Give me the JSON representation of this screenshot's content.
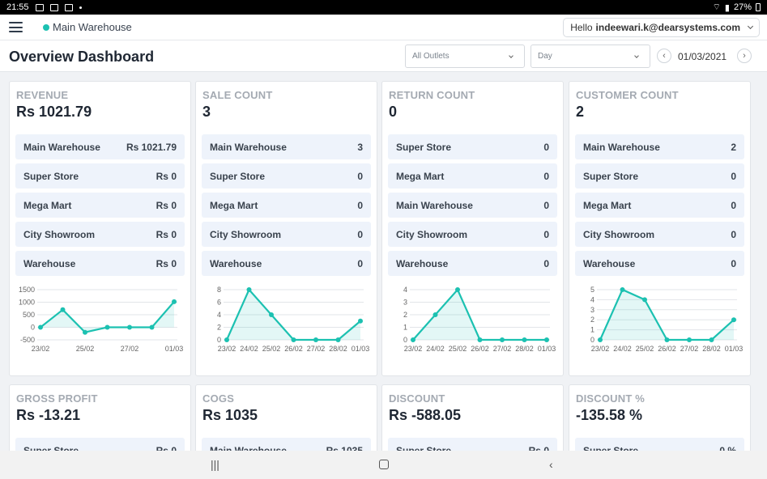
{
  "status_bar": {
    "time": "21:55",
    "battery": "27%"
  },
  "header": {
    "location": "Main Warehouse",
    "greeting": "Hello",
    "user": "indeewari.k@dearsystems.com"
  },
  "toolbar": {
    "title": "Overview Dashboard",
    "outlet_select": "All Outlets",
    "period_select": "Day",
    "date": "01/03/2021",
    "prev": "‹",
    "next": "›"
  },
  "colors": {
    "accent": "#1cc1b1",
    "row_bg": "#eef3fb"
  },
  "cards": [
    {
      "title": "REVENUE",
      "value": "Rs 1021.79",
      "rows": [
        {
          "label": "Main Warehouse",
          "value": "Rs 1021.79"
        },
        {
          "label": "Super Store",
          "value": "Rs 0"
        },
        {
          "label": "Mega Mart",
          "value": "Rs 0"
        },
        {
          "label": "City Showroom",
          "value": "Rs 0"
        },
        {
          "label": "Warehouse",
          "value": "Rs 0"
        }
      ]
    },
    {
      "title": "SALE COUNT",
      "value": "3",
      "rows": [
        {
          "label": "Main Warehouse",
          "value": "3"
        },
        {
          "label": "Super Store",
          "value": "0"
        },
        {
          "label": "Mega Mart",
          "value": "0"
        },
        {
          "label": "City Showroom",
          "value": "0"
        },
        {
          "label": "Warehouse",
          "value": "0"
        }
      ]
    },
    {
      "title": "RETURN COUNT",
      "value": "0",
      "rows": [
        {
          "label": "Super Store",
          "value": "0"
        },
        {
          "label": "Mega Mart",
          "value": "0"
        },
        {
          "label": "Main Warehouse",
          "value": "0"
        },
        {
          "label": "City Showroom",
          "value": "0"
        },
        {
          "label": "Warehouse",
          "value": "0"
        }
      ]
    },
    {
      "title": "CUSTOMER COUNT",
      "value": "2",
      "rows": [
        {
          "label": "Main Warehouse",
          "value": "2"
        },
        {
          "label": "Super Store",
          "value": "0"
        },
        {
          "label": "Mega Mart",
          "value": "0"
        },
        {
          "label": "City Showroom",
          "value": "0"
        },
        {
          "label": "Warehouse",
          "value": "0"
        }
      ]
    },
    {
      "title": "GROSS PROFIT",
      "value": "Rs -13.21",
      "rows": [
        {
          "label": "Super Store",
          "value": "Rs 0"
        }
      ]
    },
    {
      "title": "COGS",
      "value": "Rs 1035",
      "rows": [
        {
          "label": "Main Warehouse",
          "value": "Rs 1035"
        }
      ]
    },
    {
      "title": "DISCOUNT",
      "value": "Rs -588.05",
      "rows": [
        {
          "label": "Super Store",
          "value": "Rs 0"
        }
      ]
    },
    {
      "title": "DISCOUNT %",
      "value": "-135.58 %",
      "rows": [
        {
          "label": "Super Store",
          "value": "0 %"
        }
      ]
    }
  ],
  "chart_data": [
    {
      "type": "area",
      "x": [
        "23/02",
        "24/02",
        "25/02",
        "26/02",
        "27/02",
        "28/02",
        "01/03"
      ],
      "xticks": [
        "23/02",
        "25/02",
        "27/02",
        "01/03"
      ],
      "yticks": [
        "1500",
        "1000",
        "500",
        "0",
        "-500"
      ],
      "values": [
        0,
        700,
        -200,
        0,
        0,
        0,
        1021.79
      ],
      "ylim": [
        -500,
        1500
      ]
    },
    {
      "type": "area",
      "x": [
        "23/02",
        "24/02",
        "25/02",
        "26/02",
        "27/02",
        "28/02",
        "01/03"
      ],
      "xticks": [
        "23/02",
        "24/02",
        "25/02",
        "26/02",
        "27/02",
        "28/02",
        "01/03"
      ],
      "yticks": [
        "8",
        "6",
        "4",
        "2",
        "0"
      ],
      "values": [
        0,
        8,
        4,
        0,
        0,
        0,
        3
      ],
      "ylim": [
        0,
        8
      ]
    },
    {
      "type": "area",
      "x": [
        "23/02",
        "24/02",
        "25/02",
        "26/02",
        "27/02",
        "28/02",
        "01/03"
      ],
      "xticks": [
        "23/02",
        "24/02",
        "25/02",
        "26/02",
        "27/02",
        "28/02",
        "01/03"
      ],
      "yticks": [
        "4",
        "3",
        "2",
        "1",
        "0"
      ],
      "values": [
        0,
        2,
        4,
        0,
        0,
        0,
        0
      ],
      "ylim": [
        0,
        4
      ]
    },
    {
      "type": "area",
      "x": [
        "23/02",
        "24/02",
        "25/02",
        "26/02",
        "27/02",
        "28/02",
        "01/03"
      ],
      "xticks": [
        "23/02",
        "24/02",
        "25/02",
        "26/02",
        "27/02",
        "28/02",
        "01/03"
      ],
      "yticks": [
        "5",
        "4",
        "3",
        "2",
        "1",
        "0"
      ],
      "values": [
        0,
        5,
        4,
        0,
        0,
        0,
        2
      ],
      "ylim": [
        0,
        5
      ]
    }
  ],
  "bottom_nav": {
    "recent": "|||",
    "back": "‹"
  }
}
